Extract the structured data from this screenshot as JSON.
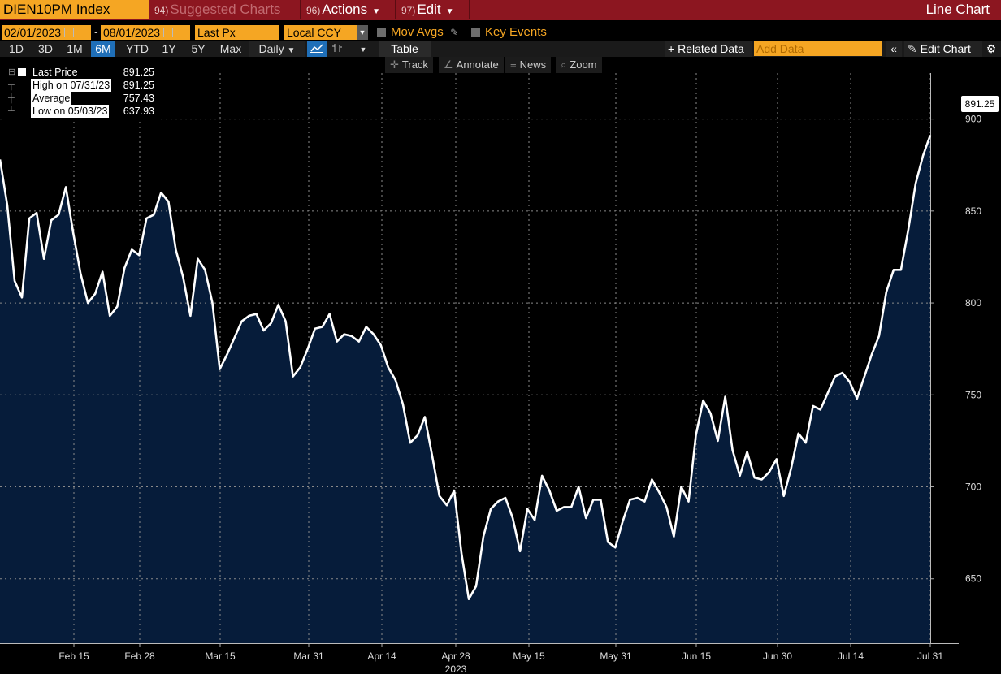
{
  "topbar": {
    "ticker": "DIEN10PM Index",
    "suggested_num": "94)",
    "suggested_label": "Suggested Charts",
    "actions_num": "96)",
    "actions_label": "Actions",
    "edit_num": "97)",
    "edit_label": "Edit",
    "chart_type": "Line Chart"
  },
  "controls": {
    "start_date": "02/01/2023",
    "date_sep": "-",
    "end_date": "08/01/2023",
    "field": "Last Px",
    "currency": "Local CCY",
    "mov_avgs": "Mov Avgs",
    "key_events": "Key Events"
  },
  "ranges": [
    "1D",
    "3D",
    "1M",
    "6M",
    "YTD",
    "1Y",
    "5Y",
    "Max"
  ],
  "active_range": "6M",
  "frequency": "Daily",
  "table_label": "Table",
  "related_data": "Related Data",
  "add_data_placeholder": "Add Data",
  "edit_chart": "Edit Chart",
  "tools": [
    "Track",
    "Annotate",
    "News",
    "Zoom"
  ],
  "legend": {
    "last_label": "Last Price",
    "last_value": "891.25",
    "high_label": "High on 07/31/23",
    "high_value": "891.25",
    "avg_label": "Average",
    "avg_value": "757.43",
    "low_label": "Low on 05/03/23",
    "low_value": "637.93"
  },
  "price_tag": "891.25",
  "colors": {
    "accent": "#f5a623",
    "topbar": "#8c1620",
    "area_fill": "#061c3a",
    "line": "#ffffff",
    "active_blue": "#1f6fb8"
  },
  "chart_data": {
    "type": "area",
    "ylim": [
      615,
      925
    ],
    "yticks": [
      650,
      700,
      750,
      800,
      850,
      900
    ],
    "xticks": [
      "Feb 15",
      "Feb 28",
      "Mar 15",
      "Mar 31",
      "Apr 14",
      "Apr 28",
      "May 15",
      "May 31",
      "Jun 15",
      "Jun 30",
      "Jul 14",
      "Jul 31"
    ],
    "xlabel": "2023",
    "grid": true,
    "series": [
      {
        "values": [
          878,
          853,
          812,
          803,
          846,
          849,
          824,
          845,
          848,
          863,
          838,
          816,
          800,
          805,
          817,
          793,
          798,
          819,
          829,
          826,
          846,
          848,
          860,
          855,
          829,
          814,
          793,
          824,
          818,
          800,
          764,
          772,
          781,
          790,
          793,
          794,
          785,
          789,
          799,
          790,
          760,
          765,
          775,
          786,
          787,
          794,
          779,
          783,
          782,
          779,
          787,
          783,
          777,
          765,
          758,
          745,
          724,
          728,
          738,
          717,
          695,
          690,
          698,
          664,
          639,
          646,
          673,
          688,
          692,
          694,
          683,
          665,
          688,
          682,
          706,
          698,
          687,
          689,
          689,
          700,
          683,
          693,
          693,
          670,
          667,
          681,
          693,
          694,
          692,
          704,
          697,
          689,
          673,
          700,
          692,
          728,
          747,
          740,
          725,
          749,
          720,
          706,
          719,
          705,
          704,
          708,
          715,
          695,
          710,
          729,
          724,
          744,
          742,
          751,
          760,
          762,
          757,
          748,
          760,
          772,
          782,
          806,
          818,
          818,
          840,
          865,
          880,
          891.25
        ]
      }
    ]
  }
}
